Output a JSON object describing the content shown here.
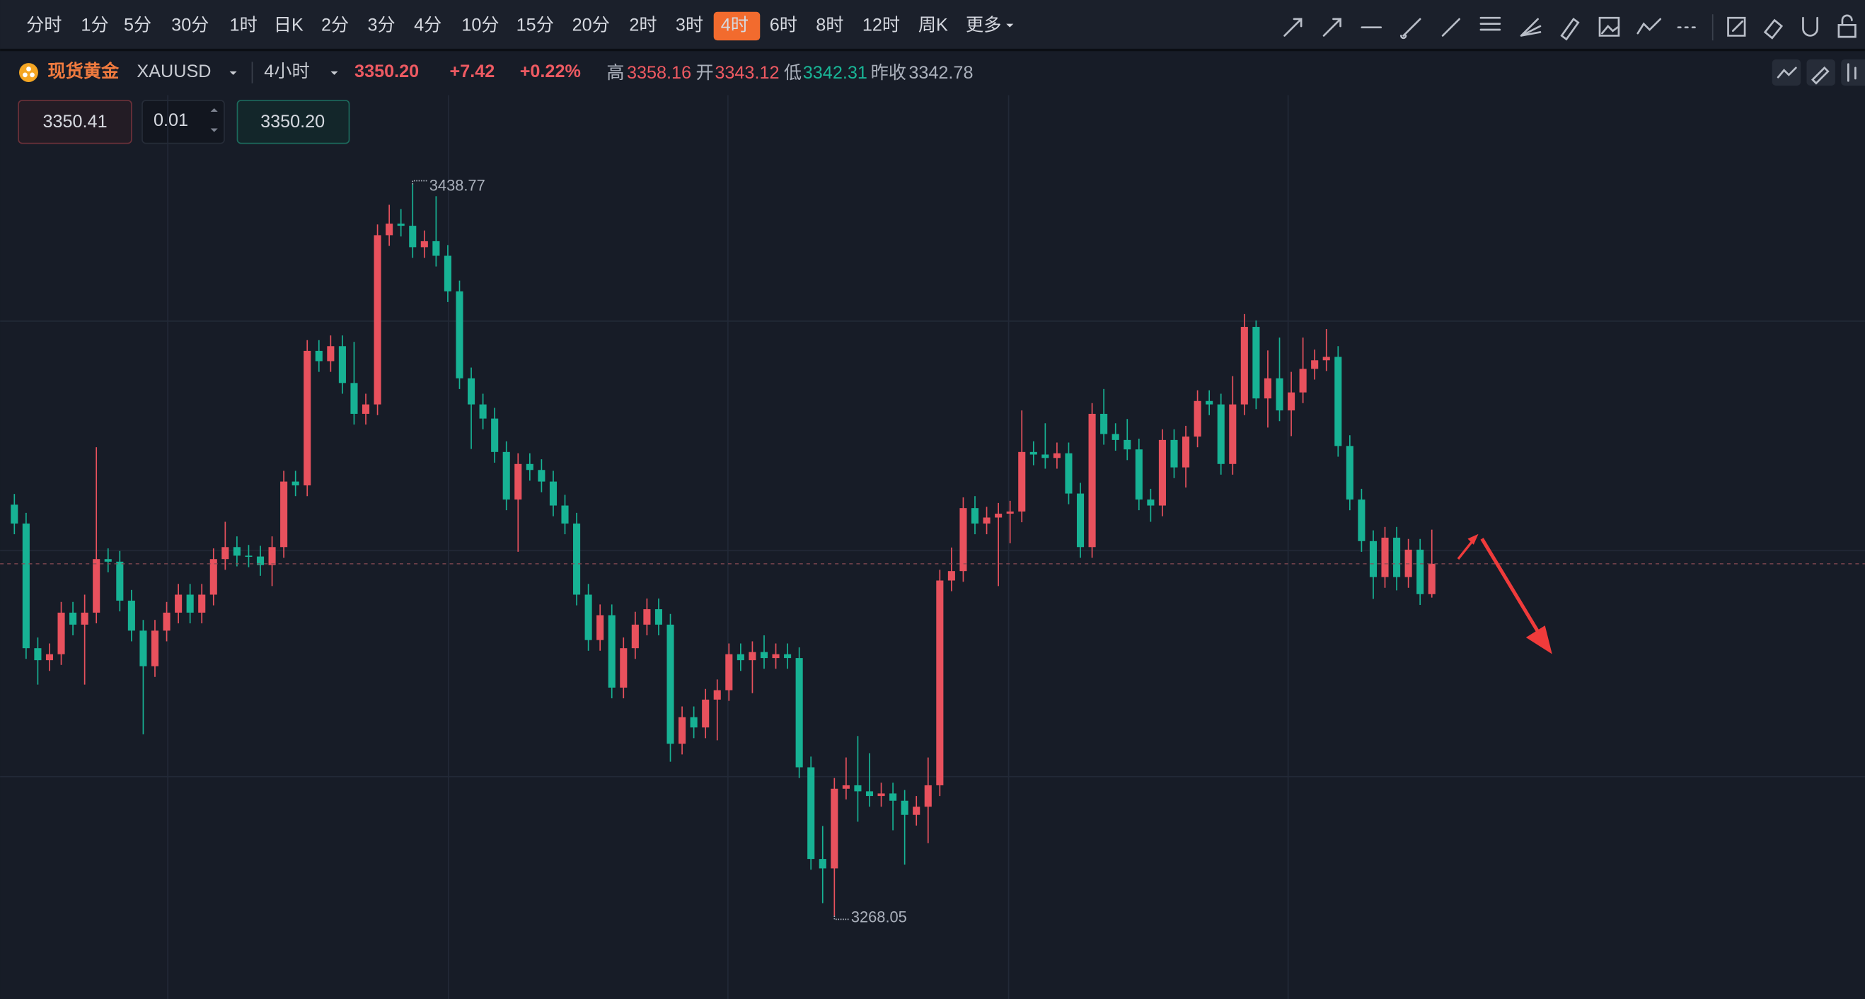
{
  "toolbar": {
    "periods": [
      "分时",
      "1分",
      "5分",
      "30分",
      "1时",
      "日K",
      "2分",
      "3分",
      "4分",
      "10分",
      "15分",
      "20分",
      "2时",
      "3时",
      "4时",
      "6时",
      "8时",
      "12时",
      "周K"
    ],
    "active_index": 14,
    "more": "更多"
  },
  "header": {
    "name": "现货黄金",
    "symbol": "XAUUSD",
    "interval": "4小时",
    "price": "3350.20",
    "change": "+7.42",
    "change_pct": "+0.22%",
    "high_label": "高",
    "high": "3358.16",
    "open_label": "开",
    "open": "3343.12",
    "low_label": "低",
    "low": "3342.31",
    "prev_close_label": "昨收",
    "prev_close": "3342.78"
  },
  "order_panel": {
    "sell": "3350.41",
    "lots": "0.01",
    "buy": "3350.20"
  },
  "chart_data": {
    "type": "candlestick",
    "up_color": "#e8515d",
    "down_color": "#17b294",
    "open": [
      3364.0,
      3359.6,
      3330.5,
      3327.7,
      3329.1,
      3338.8,
      3336.0,
      3338.8,
      3351.3,
      3350.7,
      3341.6,
      3334.6,
      3326.3,
      3334.6,
      3338.8,
      3343.0,
      3338.8,
      3343.0,
      3351.3,
      3354.1,
      3352.1,
      3351.9,
      3349.9,
      3354.1,
      3369.4,
      3368.5,
      3399.9,
      3397.5,
      3401.0,
      3392.4,
      3385.2,
      3387.4,
      3426.9,
      3429.6,
      3429.1,
      3424.1,
      3425.5,
      3422.1,
      3413.8,
      3393.5,
      3387.4,
      3384.1,
      3376.3,
      3365.2,
      3373.5,
      3372.1,
      3369.4,
      3363.8,
      3359.6,
      3343.0,
      3332.4,
      3338.2,
      3321.3,
      3330.5,
      3336.0,
      3339.6,
      3336.0,
      3308.2,
      3314.4,
      3312.0,
      3318.5,
      3320.7,
      3329.1,
      3327.7,
      3329.6,
      3328.2,
      3329.1,
      3328.2,
      3302.7,
      3281.3,
      3279.1,
      3297.7,
      3298.5,
      3297.1,
      3296.0,
      3296.6,
      3294.9,
      3291.6,
      3293.5,
      3298.5,
      3346.3,
      3348.5,
      3363.2,
      3359.6,
      3361.0,
      3361.9,
      3362.4,
      3376.3,
      3375.7,
      3374.9,
      3376.0,
      3366.6,
      3354.1,
      3385.2,
      3380.5,
      3379.1,
      3376.9,
      3365.2,
      3363.8,
      3379.1,
      3372.7,
      3379.9,
      3388.2,
      3387.4,
      3373.5,
      3387.4,
      3405.5,
      3388.8,
      3393.5,
      3386.0,
      3390.2,
      3395.7,
      3397.7,
      3398.5,
      3377.7,
      3365.2,
      3355.5,
      3347.1,
      3356.3,
      3347.1,
      3353.5,
      3343.12
    ],
    "high": [
      3366.5,
      3362.1,
      3333.0,
      3331.6,
      3341.3,
      3341.3,
      3343.0,
      3377.4,
      3353.8,
      3353.2,
      3344.1,
      3337.1,
      3337.1,
      3341.3,
      3345.5,
      3345.5,
      3345.5,
      3353.8,
      3360.0,
      3356.6,
      3354.6,
      3354.4,
      3356.6,
      3371.9,
      3371.9,
      3402.4,
      3402.4,
      3403.5,
      3403.5,
      3402.0,
      3389.9,
      3429.4,
      3434.0,
      3433.0,
      3438.77,
      3428.0,
      3436.0,
      3424.6,
      3416.3,
      3396.0,
      3389.9,
      3386.6,
      3378.8,
      3376.0,
      3376.0,
      3374.6,
      3371.9,
      3366.3,
      3362.1,
      3345.5,
      3340.7,
      3340.7,
      3333.0,
      3339.0,
      3342.1,
      3342.1,
      3338.5,
      3316.9,
      3316.9,
      3321.0,
      3323.2,
      3331.6,
      3331.6,
      3332.1,
      3333.5,
      3331.6,
      3331.6,
      3330.7,
      3305.2,
      3289.0,
      3300.2,
      3305.0,
      3310.0,
      3306.0,
      3299.1,
      3299.1,
      3297.4,
      3296.0,
      3305.0,
      3348.8,
      3354.0,
      3365.7,
      3366.0,
      3363.5,
      3364.4,
      3364.9,
      3386.0,
      3378.8,
      3383.0,
      3378.5,
      3378.5,
      3369.1,
      3387.7,
      3391.0,
      3383.0,
      3384.0,
      3379.4,
      3367.7,
      3381.6,
      3381.6,
      3382.4,
      3390.7,
      3390.7,
      3389.9,
      3394.0,
      3408.5,
      3407.0,
      3400.0,
      3403.0,
      3395.0,
      3403.0,
      3400.2,
      3405.0,
      3401.0,
      3380.2,
      3367.7,
      3358.0,
      3358.8,
      3358.8,
      3356.0,
      3356.0,
      3358.16
    ],
    "low": [
      3357.1,
      3328.0,
      3322.0,
      3325.2,
      3326.6,
      3333.5,
      3322.0,
      3336.3,
      3348.2,
      3339.1,
      3332.1,
      3310.4,
      3323.8,
      3332.1,
      3336.3,
      3336.3,
      3336.3,
      3340.5,
      3348.8,
      3349.6,
      3349.4,
      3347.4,
      3345.0,
      3351.6,
      3366.0,
      3366.0,
      3395.0,
      3395.0,
      3389.9,
      3382.7,
      3382.7,
      3384.9,
      3424.4,
      3426.6,
      3421.6,
      3421.6,
      3419.6,
      3411.3,
      3391.0,
      3377.0,
      3381.6,
      3373.8,
      3362.7,
      3353.0,
      3369.6,
      3366.9,
      3361.3,
      3357.1,
      3340.5,
      3329.9,
      3329.9,
      3318.8,
      3318.8,
      3328.0,
      3333.5,
      3333.5,
      3304.0,
      3305.7,
      3309.5,
      3309.5,
      3309.0,
      3318.2,
      3325.2,
      3320.0,
      3325.7,
      3325.7,
      3325.7,
      3300.2,
      3278.8,
      3271.0,
      3268.05,
      3295.2,
      3290.0,
      3293.5,
      3293.5,
      3288.0,
      3280.0,
      3289.1,
      3285.0,
      3296.0,
      3343.8,
      3346.0,
      3357.1,
      3357.1,
      3345.0,
      3355.0,
      3359.9,
      3373.2,
      3372.4,
      3372.4,
      3364.1,
      3351.6,
      3351.6,
      3378.0,
      3376.6,
      3374.4,
      3362.7,
      3360.0,
      3361.3,
      3370.2,
      3368.0,
      3377.4,
      3384.9,
      3371.0,
      3371.0,
      3384.9,
      3386.3,
      3382.0,
      3383.5,
      3380.0,
      3387.7,
      3393.2,
      3395.2,
      3375.2,
      3362.7,
      3353.0,
      3342.0,
      3344.6,
      3344.0,
      3344.6,
      3340.6,
      3342.31
    ],
    "close": [
      3359.6,
      3330.5,
      3327.7,
      3329.1,
      3338.8,
      3336.0,
      3338.8,
      3351.3,
      3350.7,
      3341.6,
      3334.6,
      3326.3,
      3334.6,
      3338.8,
      3343.0,
      3338.8,
      3343.0,
      3351.3,
      3354.1,
      3352.1,
      3351.9,
      3349.9,
      3354.1,
      3369.4,
      3368.5,
      3399.9,
      3397.5,
      3401.0,
      3392.4,
      3385.2,
      3387.4,
      3426.9,
      3429.6,
      3429.1,
      3424.1,
      3425.5,
      3422.1,
      3413.8,
      3393.5,
      3387.4,
      3384.1,
      3376.3,
      3365.2,
      3373.5,
      3372.1,
      3369.4,
      3363.8,
      3359.6,
      3343.0,
      3332.4,
      3338.2,
      3321.3,
      3330.5,
      3336.0,
      3339.6,
      3336.0,
      3308.2,
      3314.4,
      3312.0,
      3318.5,
      3320.7,
      3329.1,
      3327.7,
      3329.6,
      3328.2,
      3329.1,
      3328.2,
      3302.7,
      3281.3,
      3279.1,
      3297.7,
      3298.5,
      3297.1,
      3296.0,
      3296.6,
      3294.9,
      3291.6,
      3293.5,
      3298.5,
      3346.3,
      3348.5,
      3363.2,
      3359.6,
      3361.0,
      3361.9,
      3362.4,
      3376.3,
      3375.7,
      3374.9,
      3376.0,
      3366.6,
      3354.1,
      3385.2,
      3380.5,
      3379.1,
      3376.9,
      3365.2,
      3363.8,
      3379.1,
      3372.7,
      3379.9,
      3388.2,
      3387.4,
      3373.5,
      3387.4,
      3405.5,
      3388.8,
      3393.5,
      3386.0,
      3390.2,
      3395.7,
      3397.7,
      3398.5,
      3377.7,
      3365.2,
      3355.5,
      3347.1,
      3356.3,
      3347.1,
      3353.5,
      3343.12,
      3350.2
    ]
  }
}
